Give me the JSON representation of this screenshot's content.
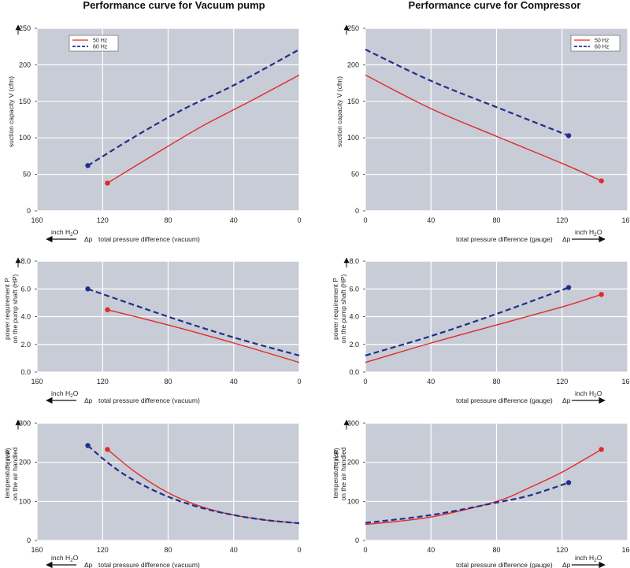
{
  "titles": {
    "left": "Performance curve for Vacuum pump",
    "right": "Performance curve for Compressor"
  },
  "axis_text": {
    "inch": "inch H",
    "sub2": "2",
    "O": "O",
    "dp": "Δp",
    "vacuum": "total pressure difference (vacuum)",
    "gauge": "total pressure difference (gauge)"
  },
  "colors": {
    "plot_bg": "#c8ccd6",
    "grid": "#ffffff",
    "hz50": "#e02b2b",
    "hz60": "#1f2f8a"
  },
  "chart_data": [
    {
      "id": "vac-suction",
      "type": "line",
      "title": "Performance curve for Vacuum pump",
      "ylabel": [
        "suction capacity V (cfm)"
      ],
      "xlabel": "total pressure difference (vacuum)",
      "x_reversed": true,
      "xlim": [
        0,
        160
      ],
      "xticks": [
        160,
        120,
        80,
        40,
        0
      ],
      "ylim": [
        0,
        250
      ],
      "yticks": [
        0,
        50,
        100,
        150,
        200,
        250
      ],
      "ytick_labels": [
        "0",
        "50",
        "100",
        "150",
        "200",
        "250"
      ],
      "legend": "top-left",
      "series": [
        {
          "name": "50 Hz",
          "style": "solid",
          "x": [
            117,
            90,
            60,
            30,
            0
          ],
          "y": [
            38,
            75,
            115,
            150,
            186
          ]
        },
        {
          "name": "60 Hz",
          "style": "dashed",
          "x": [
            129,
            100,
            70,
            40,
            0
          ],
          "y": [
            62,
            102,
            140,
            172,
            221
          ]
        }
      ]
    },
    {
      "id": "comp-suction",
      "type": "line",
      "title": "Performance curve for Compressor",
      "ylabel": [
        "suction capacity V (cfm)"
      ],
      "xlabel": "total pressure difference (gauge)",
      "x_reversed": false,
      "xlim": [
        0,
        160
      ],
      "xticks": [
        0,
        40,
        80,
        120,
        160
      ],
      "ylim": [
        0,
        250
      ],
      "yticks": [
        0,
        50,
        100,
        150,
        200,
        250
      ],
      "ytick_labels": [
        "0",
        "50",
        "100",
        "150",
        "200",
        "250"
      ],
      "legend": "top-right",
      "series": [
        {
          "name": "50 Hz",
          "style": "solid",
          "x": [
            0,
            40,
            80,
            120,
            144
          ],
          "y": [
            186,
            140,
            102,
            65,
            41
          ]
        },
        {
          "name": "60 Hz",
          "style": "dashed",
          "x": [
            0,
            40,
            80,
            124
          ],
          "y": [
            221,
            178,
            142,
            103
          ]
        }
      ]
    },
    {
      "id": "vac-power",
      "type": "line",
      "ylabel": [
        "power requirement P",
        "on the pump shaft (HP)"
      ],
      "xlabel": "total pressure difference (vacuum)",
      "x_reversed": true,
      "xlim": [
        0,
        160
      ],
      "xticks": [
        160,
        120,
        80,
        40,
        0
      ],
      "ylim": [
        0,
        8
      ],
      "yticks": [
        0,
        2,
        4,
        6,
        8
      ],
      "ytick_labels": [
        "0.0",
        "2.0",
        "4.0",
        "6.0",
        "8.0"
      ],
      "series": [
        {
          "name": "50 Hz",
          "style": "solid",
          "x": [
            117,
            80,
            40,
            0
          ],
          "y": [
            4.5,
            3.4,
            2.1,
            0.7
          ]
        },
        {
          "name": "60 Hz",
          "style": "dashed",
          "x": [
            129,
            80,
            40,
            0
          ],
          "y": [
            6.0,
            4.0,
            2.5,
            1.2
          ]
        }
      ]
    },
    {
      "id": "comp-power",
      "type": "line",
      "ylabel": [
        "power requirement P",
        "on the pump shaft (HP)"
      ],
      "xlabel": "total pressure difference (gauge)",
      "x_reversed": false,
      "xlim": [
        0,
        160
      ],
      "xticks": [
        0,
        40,
        80,
        120,
        160
      ],
      "ylim": [
        0,
        8
      ],
      "yticks": [
        0,
        2,
        4,
        6,
        8
      ],
      "ytick_labels": [
        "0.0",
        "2.0",
        "4.0",
        "6.0",
        "8.0"
      ],
      "series": [
        {
          "name": "50 Hz",
          "style": "solid",
          "x": [
            0,
            40,
            80,
            120,
            144
          ],
          "y": [
            0.7,
            2.1,
            3.4,
            4.7,
            5.6
          ]
        },
        {
          "name": "60 Hz",
          "style": "dashed",
          "x": [
            0,
            40,
            80,
            124
          ],
          "y": [
            1.2,
            2.6,
            4.2,
            6.1
          ]
        }
      ]
    },
    {
      "id": "vac-temp",
      "type": "line",
      "ylabel": [
        "temperature rise",
        "on the air handled"
      ],
      "ylabel_extra": "T   (in F)",
      "xlabel": "total pressure difference (vacuum)",
      "x_reversed": true,
      "xlim": [
        0,
        160
      ],
      "xticks": [
        160,
        120,
        80,
        40,
        0
      ],
      "ylim": [
        0,
        300
      ],
      "yticks": [
        0,
        100,
        200,
        300
      ],
      "ytick_labels": [
        "0",
        "100",
        "200",
        "300"
      ],
      "series": [
        {
          "name": "50 Hz",
          "style": "solid",
          "x": [
            117,
            100,
            80,
            60,
            40,
            20,
            0
          ],
          "y": [
            233,
            175,
            122,
            87,
            65,
            52,
            44
          ]
        },
        {
          "name": "60 Hz",
          "style": "dashed",
          "x": [
            129,
            115,
            100,
            80,
            60,
            40,
            20,
            0
          ],
          "y": [
            243,
            193,
            152,
            112,
            84,
            65,
            52,
            44
          ]
        }
      ]
    },
    {
      "id": "comp-temp",
      "type": "line",
      "ylabel": [
        "temperature rise",
        "on the air handled"
      ],
      "ylabel_extra": "T   (in F)",
      "xlabel": "total pressure difference (gauge)",
      "x_reversed": false,
      "xlim": [
        0,
        160
      ],
      "xticks": [
        0,
        40,
        80,
        120,
        160
      ],
      "ylim": [
        0,
        300
      ],
      "yticks": [
        0,
        100,
        200,
        300
      ],
      "ytick_labels": [
        "0",
        "100",
        "200",
        "300"
      ],
      "series": [
        {
          "name": "50 Hz",
          "style": "solid",
          "x": [
            0,
            40,
            80,
            100,
            120,
            144
          ],
          "y": [
            41,
            60,
            100,
            135,
            175,
            233
          ]
        },
        {
          "name": "60 Hz",
          "style": "dashed",
          "x": [
            0,
            40,
            80,
            100,
            124
          ],
          "y": [
            45,
            65,
            97,
            115,
            148
          ]
        }
      ]
    }
  ]
}
